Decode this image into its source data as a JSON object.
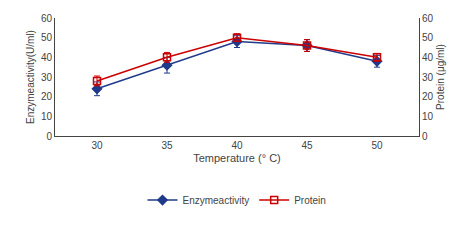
{
  "chart_data": {
    "type": "line",
    "x": [
      30,
      35,
      40,
      45,
      50
    ],
    "xlabel": "Temperature (° C)",
    "ylabel": "Enzymeactivity(U/ml)",
    "y2label": "Protein (μg/ml)",
    "xlim": [
      27,
      53
    ],
    "xticks": [
      30,
      35,
      40,
      45,
      50
    ],
    "ylim": [
      0,
      60
    ],
    "yticks": [
      0,
      10,
      20,
      30,
      40,
      50,
      60
    ],
    "y2lim": [
      0,
      60
    ],
    "y2ticks": [
      0,
      10,
      20,
      30,
      40,
      50,
      60
    ],
    "grid": false,
    "legend": "bottom",
    "series": [
      {
        "name": "Enzymeactivity",
        "color": "#1f3a8a",
        "marker": "diamond",
        "values": [
          24,
          36,
          48,
          46,
          38
        ],
        "error": [
          3.5,
          4,
          3,
          3,
          3
        ]
      },
      {
        "name": "Protein",
        "color": "#cc0000",
        "marker": "square-open",
        "axis": "y2",
        "values": [
          28,
          40,
          50,
          46,
          40
        ],
        "error": [
          2.5,
          2.5,
          2,
          3,
          2
        ]
      }
    ]
  }
}
